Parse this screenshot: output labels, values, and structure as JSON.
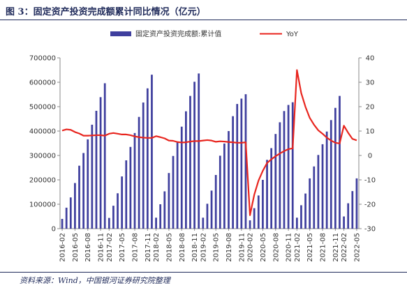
{
  "header": {
    "title": "图 3：固定资产投资完成额累计同比情况（亿元）"
  },
  "footer": {
    "source": "资料来源：Wind，中国银河证券研究院整理"
  },
  "chart_data": {
    "type": "bar",
    "title": "图 3：固定资产投资完成额累计同比情况（亿元）",
    "x": [
      "2016-02",
      "2016-03",
      "2016-04",
      "2016-05",
      "2016-06",
      "2016-07",
      "2016-08",
      "2016-09",
      "2016-10",
      "2016-11",
      "2016-12",
      "2017-02",
      "2017-03",
      "2017-04",
      "2017-05",
      "2017-06",
      "2017-07",
      "2017-08",
      "2017-09",
      "2017-10",
      "2017-11",
      "2017-12",
      "2018-02",
      "2018-03",
      "2018-04",
      "2018-05",
      "2018-06",
      "2018-07",
      "2018-08",
      "2018-09",
      "2018-10",
      "2018-11",
      "2018-12",
      "2019-02",
      "2019-03",
      "2019-04",
      "2019-05",
      "2019-06",
      "2019-07",
      "2019-08",
      "2019-09",
      "2019-10",
      "2019-11",
      "2019-12",
      "2020-02",
      "2020-03",
      "2020-04",
      "2020-05",
      "2020-06",
      "2020-07",
      "2020-08",
      "2020-09",
      "2020-10",
      "2020-11",
      "2020-12",
      "2021-02",
      "2021-03",
      "2021-04",
      "2021-05",
      "2021-06",
      "2021-07",
      "2021-08",
      "2021-09",
      "2021-10",
      "2021-11",
      "2021-12",
      "2022-02",
      "2022-03",
      "2022-04",
      "2022-05"
    ],
    "tick_labels": [
      "2016-02",
      "2016-05",
      "2016-08",
      "2016-11",
      "2017-02",
      "2017-05",
      "2017-08",
      "2017-11",
      "2018-02",
      "2018-05",
      "2018-08",
      "2018-11",
      "2019-02",
      "2019-05",
      "2019-08",
      "2019-11",
      "2020-02",
      "2020-05",
      "2020-08",
      "2020-11",
      "2021-02",
      "2021-05",
      "2021-08",
      "2021-11",
      "2022-02",
      "2022-05"
    ],
    "series": [
      {
        "name": "固定资产投资完成额:累计值",
        "kind": "bar",
        "axis": "left",
        "color": "#3f3f9e",
        "values": [
          40000,
          86000,
          128000,
          187000,
          258000,
          310000,
          366000,
          426000,
          483000,
          539000,
          596000,
          44000,
          94000,
          145000,
          214000,
          280000,
          335000,
          392000,
          458000,
          517000,
          575000,
          631000,
          45000,
          100000,
          153000,
          228000,
          298000,
          357000,
          418000,
          481000,
          544000,
          602000,
          636000,
          45000,
          102000,
          156000,
          220000,
          299000,
          349000,
          400000,
          461000,
          511000,
          533000,
          551000,
          34000,
          84000,
          136000,
          200000,
          282000,
          330000,
          388000,
          436000,
          482000,
          507000,
          518000,
          45000,
          96000,
          144000,
          206000,
          255000,
          302000,
          346000,
          398000,
          445000,
          495000,
          544000,
          50000,
          104000,
          154000,
          206000
        ]
      },
      {
        "name": "YoY",
        "kind": "line",
        "axis": "right",
        "color": "#e8251e",
        "values": [
          10.2,
          10.7,
          10.5,
          9.6,
          9.0,
          8.1,
          8.1,
          8.2,
          8.3,
          8.3,
          8.1,
          8.9,
          9.2,
          8.9,
          8.6,
          8.6,
          8.3,
          7.8,
          7.5,
          7.3,
          7.2,
          7.2,
          7.9,
          7.5,
          7.0,
          6.1,
          6.0,
          5.5,
          5.3,
          5.4,
          5.7,
          5.9,
          5.9,
          6.1,
          6.3,
          6.1,
          5.6,
          5.8,
          5.7,
          5.5,
          5.4,
          5.2,
          5.2,
          5.4,
          -24.5,
          -16.1,
          -10.3,
          -6.3,
          -3.1,
          -1.6,
          -0.3,
          0.8,
          1.8,
          2.6,
          2.9,
          35.0,
          25.6,
          19.9,
          15.4,
          12.6,
          10.3,
          8.9,
          7.3,
          6.1,
          5.2,
          4.9,
          12.2,
          9.3,
          6.8,
          6.2
        ]
      }
    ],
    "ylim_left": [
      0,
      700000
    ],
    "yticks_left": [
      "0",
      "100000",
      "200000",
      "300000",
      "400000",
      "500000",
      "600000",
      "700000"
    ],
    "ylim_right": [
      -30,
      40
    ],
    "yticks_right": [
      "-30",
      "-20",
      "-10",
      "0",
      "10",
      "20",
      "30",
      "40"
    ],
    "legend_position": "top-center",
    "grid": false
  }
}
